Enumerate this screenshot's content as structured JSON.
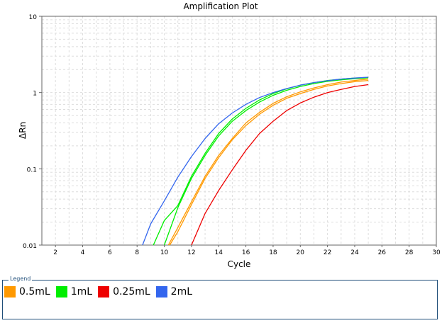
{
  "chart_data": {
    "type": "line",
    "title": "Amplification Plot",
    "xlabel": "Cycle",
    "ylabel": "ΔRn",
    "xlim": [
      1,
      30
    ],
    "ylim": [
      0.01,
      10
    ],
    "yscale": "log",
    "x_ticks": [
      2,
      4,
      6,
      8,
      10,
      12,
      14,
      16,
      18,
      20,
      22,
      24,
      26,
      28,
      30
    ],
    "x_tick_labels": [
      "2",
      "4",
      "6",
      "8",
      "10",
      "12",
      "14",
      "16",
      "18",
      "20",
      "22",
      "24",
      "26",
      "28",
      "30"
    ],
    "y_ticks": [
      0.01,
      0.1,
      1,
      10
    ],
    "y_tick_labels": [
      "0.01",
      "0.1",
      "1",
      "10"
    ],
    "grid": true,
    "legend_title": "Legend",
    "legend_position": "bottom",
    "series": [
      {
        "name": "0.5mL",
        "color": "#ff9900",
        "curves": [
          {
            "x": [
              10.3,
              11,
              12,
              13,
              14,
              15,
              16,
              17,
              18,
              19,
              20,
              21,
              22,
              23,
              24,
              25
            ],
            "y": [
              0.01,
              0.017,
              0.037,
              0.08,
              0.15,
              0.25,
              0.4,
              0.55,
              0.72,
              0.88,
              1.02,
              1.15,
              1.27,
              1.37,
              1.44,
              1.5
            ]
          },
          {
            "x": [
              10.4,
              11,
              12,
              13,
              14,
              15,
              16,
              17,
              18,
              19,
              20,
              21,
              22,
              23,
              24,
              25
            ],
            "y": [
              0.01,
              0.015,
              0.034,
              0.075,
              0.14,
              0.24,
              0.37,
              0.52,
              0.68,
              0.84,
              0.97,
              1.1,
              1.22,
              1.31,
              1.39,
              1.44
            ]
          }
        ]
      },
      {
        "name": "1mL",
        "color": "#00ee00",
        "curves": [
          {
            "x": [
              9.2,
              10,
              11,
              12,
              13,
              14,
              15,
              16,
              17,
              18,
              19,
              20,
              21,
              22,
              23,
              24,
              25
            ],
            "y": [
              0.01,
              0.021,
              0.033,
              0.08,
              0.16,
              0.29,
              0.45,
              0.62,
              0.8,
              0.97,
              1.12,
              1.25,
              1.35,
              1.44,
              1.5,
              1.55,
              1.58
            ]
          },
          {
            "x": [
              10.0,
              11,
              12,
              13,
              14,
              15,
              16,
              17,
              18,
              19,
              20,
              21,
              22,
              23,
              24,
              25
            ],
            "y": [
              0.01,
              0.031,
              0.075,
              0.15,
              0.27,
              0.42,
              0.58,
              0.75,
              0.92,
              1.07,
              1.2,
              1.31,
              1.4,
              1.47,
              1.52,
              1.56
            ]
          }
        ]
      },
      {
        "name": "0.25mL",
        "color": "#ee0000",
        "curves": [
          {
            "x": [
              12.0,
              13,
              14,
              15,
              16,
              17,
              18,
              19,
              20,
              21,
              22,
              23,
              24,
              25
            ],
            "y": [
              0.01,
              0.026,
              0.052,
              0.097,
              0.175,
              0.29,
              0.42,
              0.58,
              0.73,
              0.87,
              1.0,
              1.1,
              1.2,
              1.27
            ]
          }
        ]
      },
      {
        "name": "2mL",
        "color": "#3366ee",
        "curves": [
          {
            "x": [
              8.4,
              9,
              10,
              11,
              12,
              13,
              14,
              15,
              16,
              17,
              18,
              19,
              20,
              21,
              22,
              23,
              24,
              25
            ],
            "y": [
              0.01,
              0.019,
              0.038,
              0.078,
              0.145,
              0.25,
              0.39,
              0.54,
              0.7,
              0.86,
              1.0,
              1.13,
              1.25,
              1.35,
              1.43,
              1.5,
              1.55,
              1.59
            ]
          }
        ]
      }
    ]
  }
}
